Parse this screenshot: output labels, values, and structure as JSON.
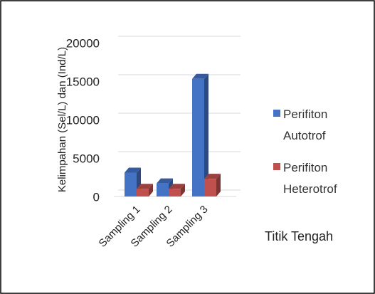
{
  "chart_data": {
    "type": "bar3d",
    "ylabel": "Kelimpahan (Sel/L) dan (Ind/L)",
    "xlabel": "Titik Tengah",
    "categories": [
      "Sampling 1",
      "Sampling 2",
      "Sampling 3"
    ],
    "series": [
      {
        "name": "Perifiton Autotrof",
        "color": "#4472c4",
        "values": [
          3100,
          1700,
          15300
        ]
      },
      {
        "name": "Perifiton Heterotrof",
        "color": "#c0504d",
        "values": [
          1000,
          1000,
          2300
        ]
      }
    ],
    "ylim": [
      0,
      20000
    ],
    "yticks": [
      0,
      5000,
      10000,
      15000,
      20000
    ],
    "grid": true,
    "legend": "right"
  }
}
